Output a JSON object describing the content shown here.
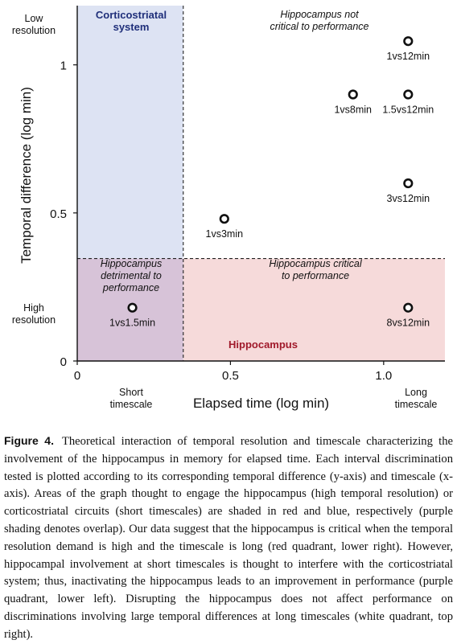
{
  "chart_data": {
    "type": "scatter",
    "title": "",
    "xlabel": "Elapsed time (log min)",
    "ylabel": "Temporal difference (log min)",
    "xlim": [
      0,
      1.2
    ],
    "ylim": [
      0,
      1.2
    ],
    "x_ticks": [
      0,
      0.5,
      1.0
    ],
    "x_tick_labels": [
      "0",
      "0.5",
      "1.0"
    ],
    "y_ticks": [
      0,
      0.5,
      1
    ],
    "y_tick_labels": [
      "0",
      "0.5",
      "1"
    ],
    "x_side_labels": {
      "low": "Short\ntimescale",
      "high": "Long\ntimescale"
    },
    "y_side_labels": {
      "high": "Low\nresolution",
      "low": "High\nresolution"
    },
    "points": [
      {
        "x": 1.08,
        "y": 1.08,
        "label": "1vs12min"
      },
      {
        "x": 0.9,
        "y": 0.9,
        "label": "1vs8min"
      },
      {
        "x": 1.08,
        "y": 0.9,
        "label": "1.5vs12min"
      },
      {
        "x": 1.08,
        "y": 0.6,
        "label": "3vs12min"
      },
      {
        "x": 0.48,
        "y": 0.48,
        "label": "1vs3min"
      },
      {
        "x": 0.18,
        "y": 0.18,
        "label": "1vs1.5min"
      },
      {
        "x": 1.08,
        "y": 0.18,
        "label": "8vs12min"
      }
    ],
    "regions": {
      "threshold_x": 0.346,
      "threshold_y": 0.346,
      "corticostriatal": {
        "label": "Corticostriatal\nsystem",
        "color": "#dde3f3"
      },
      "hippocampus": {
        "label": "Hippocampus",
        "color": "#f6dada"
      },
      "overlap": {
        "label": "Hippocampus\ndetrimental to\nperformance",
        "color": "#d7c3d8"
      },
      "critical": {
        "label": "Hippocampus critical\nto performance"
      },
      "not_critical": {
        "label": "Hippocampus not\ncritical to performance"
      }
    },
    "grid": false
  },
  "caption": {
    "label": "Figure 4.",
    "text": "Theoretical interaction of temporal resolution and timescale characterizing the involvement of the hippocampus in memory for elapsed time. Each interval discrimination tested is plotted according to its corresponding temporal difference (y-axis) and timescale (x-axis). Areas of the graph thought to engage the hippocampus (high temporal resolution) or corticostriatal circuits (short timescales) are shaded in red and blue, respectively (purple shading denotes overlap). Our data suggest that the hippocampus is critical when the temporal resolution demand is high and the timescale is long (red quadrant, lower right). However, hippocampal involvement at short timescales is thought to interfere with the corticostriatal system; thus, inactivating the hippocampus leads to an improvement in performance (purple quadrant, lower left). Disrupting the hippocampus does not affect performance on discriminations involving large temporal differences at long timescales (white quadrant, top right)."
  }
}
